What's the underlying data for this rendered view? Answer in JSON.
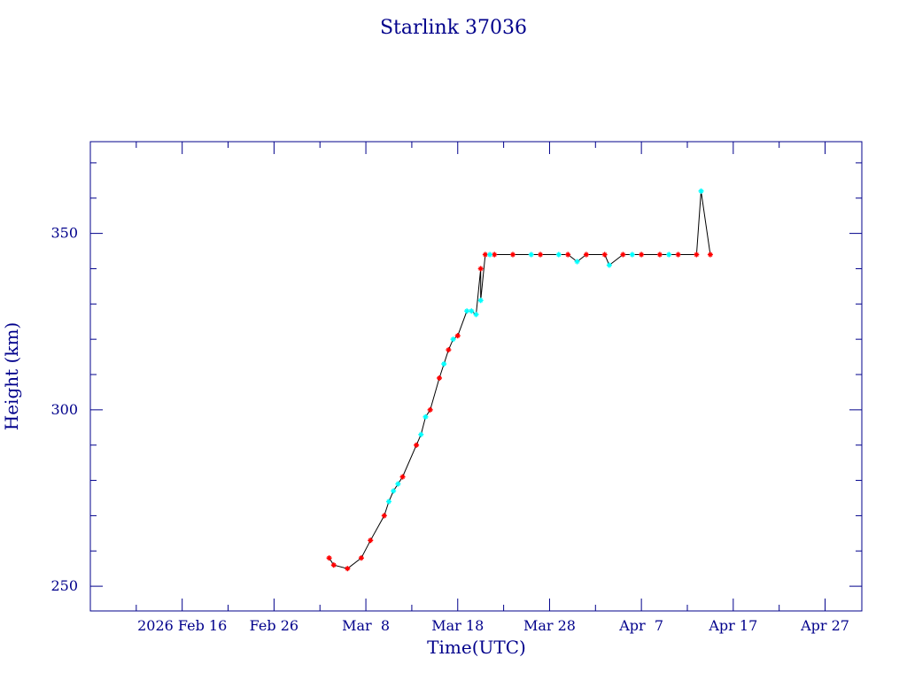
{
  "chart_data": {
    "type": "line",
    "title": "Starlink 37036",
    "xlabel": "Time(UTC)",
    "ylabel": "Height (km)",
    "x_ticks": [
      "2026 Feb 16",
      "Feb 26",
      "Mar  8",
      "Mar 18",
      "Mar 28",
      "Apr  7",
      "Apr 17",
      "Apr 27"
    ],
    "x_tick_days": [
      16,
      26,
      36,
      46,
      56,
      66,
      76,
      86
    ],
    "xlim_days": [
      6,
      90
    ],
    "x_origin": "2026 Jan 31",
    "y_ticks": [
      250,
      300,
      350
    ],
    "ylim": [
      243,
      376
    ],
    "grid": false,
    "colors": {
      "axes": "#00008b",
      "line": "#000000",
      "red_markers": "#ff0000",
      "cyan_markers": "#00ffff"
    },
    "series": [
      {
        "marker_color": "red",
        "points": [
          [
            32.0,
            258
          ],
          [
            32.5,
            256
          ],
          [
            34.0,
            255
          ],
          [
            35.5,
            258
          ],
          [
            36.5,
            263
          ],
          [
            38.0,
            270
          ],
          [
            40.0,
            281
          ],
          [
            41.5,
            290
          ],
          [
            43.0,
            300
          ],
          [
            44.0,
            309
          ],
          [
            45.0,
            317
          ],
          [
            46.0,
            321
          ],
          [
            48.5,
            340
          ],
          [
            49.0,
            344
          ],
          [
            50.0,
            344
          ],
          [
            52.0,
            344
          ],
          [
            55.0,
            344
          ],
          [
            58.0,
            344
          ],
          [
            60.0,
            344
          ],
          [
            62.0,
            344
          ],
          [
            64.0,
            344
          ],
          [
            66.0,
            344
          ],
          [
            68.0,
            344
          ],
          [
            70.0,
            344
          ],
          [
            72.0,
            344
          ],
          [
            73.5,
            344
          ]
        ]
      },
      {
        "marker_color": "cyan",
        "points": [
          [
            38.5,
            274
          ],
          [
            39.0,
            277
          ],
          [
            39.5,
            279
          ],
          [
            42.0,
            293
          ],
          [
            42.5,
            298
          ],
          [
            44.5,
            313
          ],
          [
            45.5,
            320
          ],
          [
            47.0,
            328
          ],
          [
            47.5,
            328
          ],
          [
            48.0,
            327
          ],
          [
            48.5,
            331
          ],
          [
            49.5,
            344
          ],
          [
            54.0,
            344
          ],
          [
            57.0,
            344
          ],
          [
            59.0,
            342
          ],
          [
            62.5,
            341
          ],
          [
            65.0,
            344
          ],
          [
            69.0,
            344
          ],
          [
            72.5,
            362
          ]
        ]
      }
    ]
  }
}
